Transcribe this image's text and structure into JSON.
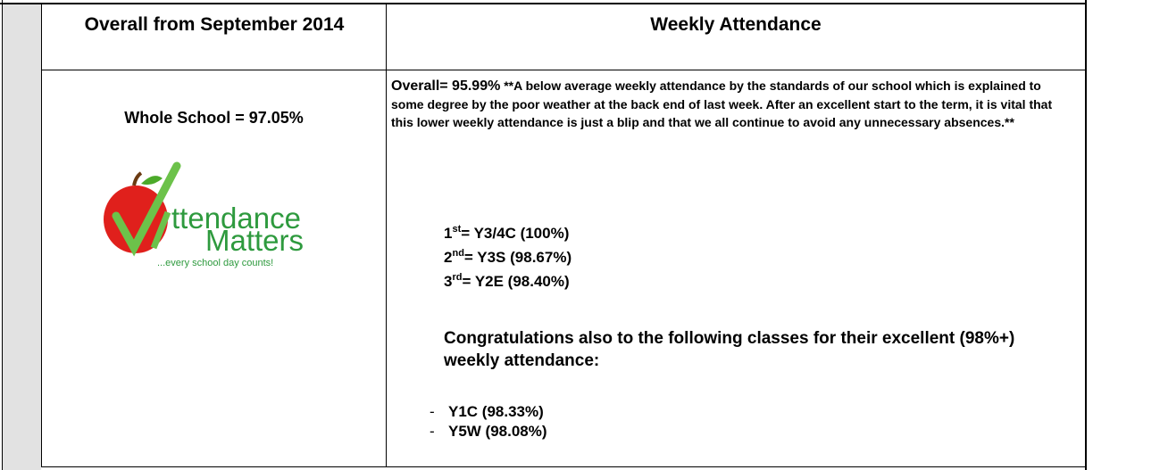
{
  "table": {
    "header": [
      "Overall from September 2014",
      "Weekly Attendance"
    ],
    "left": {
      "whole_school": "Whole School = 97.05%",
      "logo": {
        "word": "ttendance",
        "word2": "Matters",
        "tagline": "...every school day counts!"
      }
    },
    "right": {
      "overall": "Overall= 95.99%",
      "comment": "**A below average weekly attendance by the standards of our school which is explained to some degree by the poor weather at the back end of last week. After an excellent start to the term, it is vital that this lower weekly attendance is just a blip and that we all continue to avoid any unnecessary absences.**",
      "ranks": [
        {
          "place": "1",
          "suffix": "st",
          "text": "= Y3/4C (100%)"
        },
        {
          "place": "2",
          "suffix": "nd",
          "text": "= Y3S (98.67%)"
        },
        {
          "place": "3",
          "suffix": "rd",
          "text": "= Y2E (98.40%)"
        }
      ],
      "congrats": "Congratulations also to the following classes for their excellent (98%+) weekly attendance:",
      "classes": [
        "Y1C (98.33%)",
        "Y5W (98.08%)"
      ]
    }
  }
}
